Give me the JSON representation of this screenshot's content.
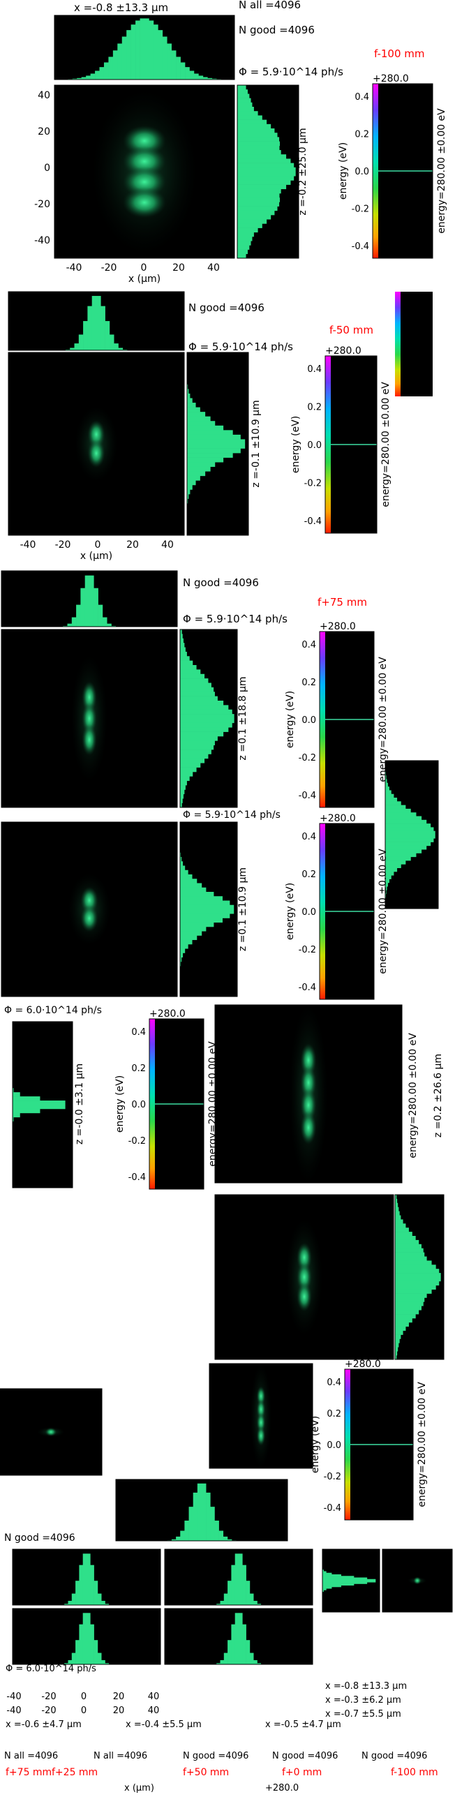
{
  "chart_data": {
    "type": "heatmap",
    "xlabel": "x (μm)",
    "energy_axis_label": "energy (eV)",
    "energy_offset_label": "+280.0",
    "energy_caption": "energy=280.00 ±0.00 eV",
    "energy_ticks": [
      "0.4",
      "0.2",
      "0.0",
      "-0.2",
      "-0.4"
    ],
    "x_ticks": [
      "-40",
      "-20",
      "0",
      "20",
      "40"
    ],
    "z_ticks": [
      "40",
      "20",
      "0",
      "-20",
      "-40"
    ],
    "xlim": [
      -50,
      50
    ],
    "zlim": [
      -50,
      50
    ],
    "panels": [
      {
        "focus_label": "f-100 mm",
        "x_stat": "x =-0.8 ±13.3 μm",
        "z_stat": "z =-0.2 ±25.0 μm",
        "n_all": "N all =4096",
        "n_good": "N good =4096",
        "flux": "Φ = 5.9·10^14 ph/s",
        "sigma_x_um": 13.3,
        "sigma_z_um": 25.0,
        "lobes": 4
      },
      {
        "focus_label": "f-50 mm",
        "x_stat": "x =-0.7 ±5.5 μm",
        "z_stat": "z =-0.1 ±10.9 μm",
        "n_all": "N all =4096",
        "n_good": "N good =4096",
        "flux": "Φ = 5.9·10^14 ph/s",
        "sigma_x_um": 5.5,
        "sigma_z_um": 10.9,
        "lobes": 2
      },
      {
        "focus_label": "f+75 mm",
        "x_stat": "x =-0.6 ±4.7 μm",
        "z_stat": "z =0.1 ±18.8 μm",
        "n_all": "N all =4096",
        "n_good": "N good =4096",
        "flux": "Φ = 5.9·10^14 ph/s",
        "sigma_x_um": 4.7,
        "sigma_z_um": 18.8,
        "lobes": 3
      },
      {
        "focus_label": "f+50 mm",
        "x_stat": "x =-0.4 ±5.5 μm",
        "z_stat": "z =0.1 ±10.9 μm",
        "n_all": "N all =4096",
        "n_good": "N good =4096",
        "flux": "Φ = 5.9·10^14 ph/s",
        "sigma_x_um": 5.5,
        "sigma_z_um": 10.9,
        "lobes": 2
      },
      {
        "focus_label": "f+25 mm",
        "x_stat": "x =-0.3 ±6.2 μm",
        "z_stat": "z =-0.0 ±3.1 μm",
        "n_all": "N all =4096",
        "n_good": "N good =4096",
        "flux": "Φ = 6.0·10^14 ph/s",
        "sigma_x_um": 6.2,
        "sigma_z_um": 3.1,
        "lobes": 1
      },
      {
        "focus_label": "f+0 mm",
        "x_stat": "x =-0.5 ±4.7 μm",
        "z_stat": "z =0.2 ±26.6 μm",
        "n_all": "N all =4096",
        "n_good": "N good =4096",
        "flux": "Φ = 5.9·10^14 ph/s",
        "sigma_x_um": 4.7,
        "sigma_z_um": 26.6,
        "lobes": 4
      }
    ],
    "colors": {
      "beam": "#2fe08a",
      "beam_dark": "#0f5a34",
      "focus_label": "#ff0000",
      "energy_line": "#2ea67a"
    }
  }
}
